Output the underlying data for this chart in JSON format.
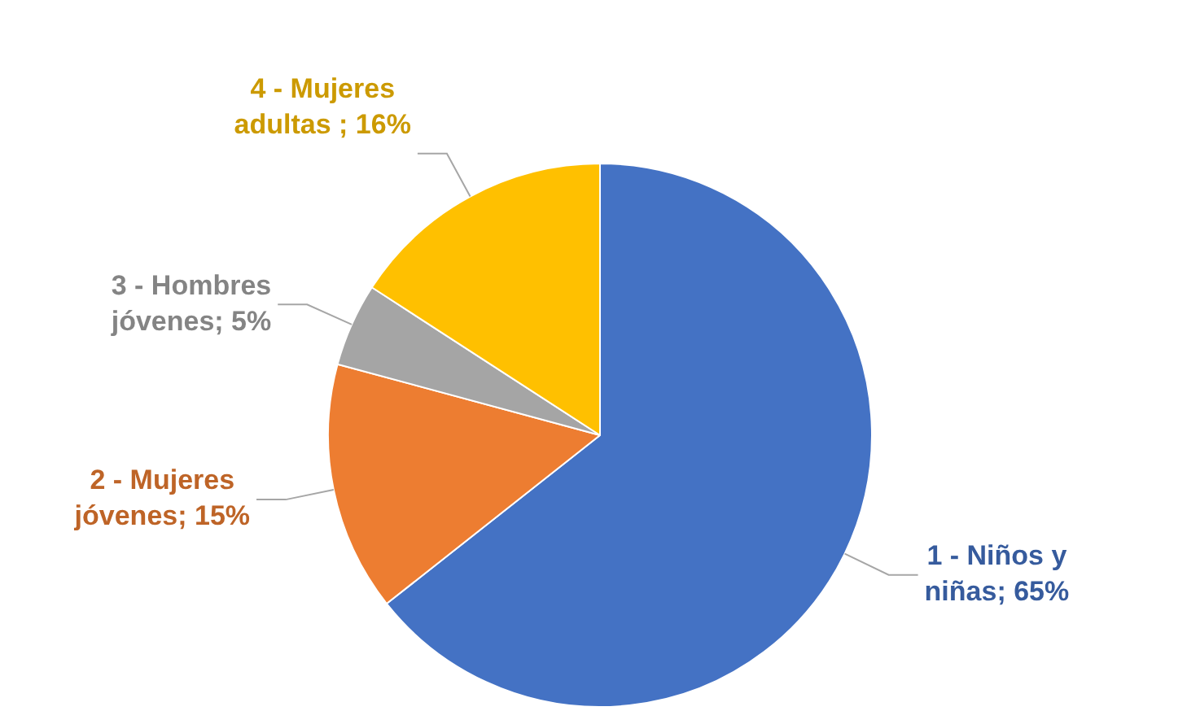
{
  "chart_data": {
    "type": "pie",
    "categories": [
      "1 - Niños y niñas; 65%",
      "2 - Mujeres jóvenes; 15%",
      "3 - Hombres jóvenes; 5%",
      "4 - Mujeres adultas ; 16%"
    ],
    "values": [
      65,
      15,
      5,
      16
    ],
    "colors": [
      "#4472c4",
      "#ed7d31",
      "#a5a5a5",
      "#ffc000"
    ],
    "legend": false
  }
}
